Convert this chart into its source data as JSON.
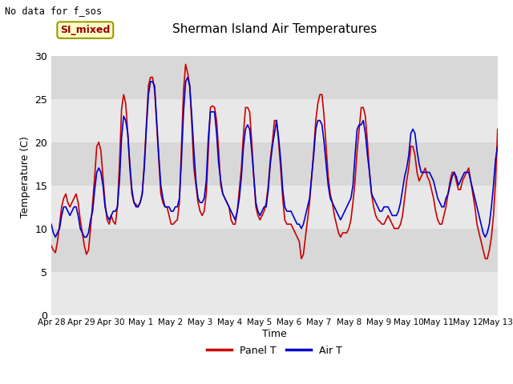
{
  "title": "Sherman Island Air Temperatures",
  "xlabel": "Time",
  "ylabel": "Temperature (C)",
  "no_data_text": "No data for f_sos",
  "legend_label_text": "SI_mixed",
  "ylim": [
    0,
    32
  ],
  "yticks": [
    0,
    5,
    10,
    15,
    20,
    25,
    30
  ],
  "xtick_labels": [
    "Apr 28",
    "Apr 29",
    "Apr 30",
    "May 1",
    "May 2",
    "May 3",
    "May 4",
    "May 5",
    "May 6",
    "May 7",
    "May 8",
    "May 9",
    "May 10",
    "May 11",
    "May 12",
    "May 13"
  ],
  "panel_color": "#cc0000",
  "air_color": "#0000cc",
  "plot_bg_light": "#ebebeb",
  "plot_bg_dark": "#d8d8d8",
  "legend_box_color": "#ffffcc",
  "legend_text_color": "#990000",
  "legend_box_edge": "#999900",
  "panel_T": [
    8.0,
    7.5,
    7.2,
    8.5,
    10.5,
    12.5,
    13.5,
    14.0,
    13.0,
    12.5,
    13.0,
    13.5,
    14.0,
    13.0,
    11.0,
    9.5,
    8.0,
    7.0,
    7.5,
    10.0,
    13.0,
    16.0,
    19.5,
    20.0,
    19.0,
    16.0,
    13.0,
    11.0,
    10.5,
    11.5,
    10.8,
    10.5,
    12.5,
    17.5,
    23.8,
    25.5,
    24.5,
    21.0,
    17.0,
    14.0,
    13.0,
    12.8,
    12.5,
    13.0,
    14.0,
    17.5,
    22.0,
    26.5,
    27.5,
    27.5,
    26.0,
    22.0,
    18.0,
    14.0,
    13.0,
    12.5,
    12.5,
    11.5,
    10.5,
    10.5,
    10.8,
    11.0,
    13.0,
    19.5,
    26.0,
    29.0,
    28.0,
    26.5,
    22.0,
    17.0,
    15.0,
    13.0,
    12.0,
    11.5,
    12.0,
    14.0,
    19.0,
    24.0,
    24.2,
    24.0,
    22.5,
    19.0,
    15.0,
    14.0,
    13.5,
    13.0,
    12.5,
    11.0,
    10.5,
    10.5,
    12.0,
    14.5,
    17.0,
    21.0,
    24.0,
    24.0,
    23.5,
    20.0,
    16.0,
    12.5,
    11.5,
    11.0,
    11.5,
    12.0,
    13.0,
    15.0,
    18.0,
    20.0,
    22.5,
    22.5,
    20.0,
    17.0,
    13.5,
    11.0,
    10.5,
    10.5,
    10.5,
    10.0,
    9.5,
    9.0,
    8.5,
    6.5,
    7.0,
    9.0,
    11.0,
    13.0,
    16.0,
    19.0,
    22.5,
    24.5,
    25.5,
    25.5,
    23.0,
    19.5,
    16.0,
    14.0,
    13.0,
    11.5,
    10.5,
    9.5,
    9.0,
    9.5,
    9.5,
    9.5,
    10.0,
    11.0,
    13.0,
    15.5,
    19.0,
    21.5,
    24.0,
    24.0,
    23.0,
    20.0,
    16.5,
    14.0,
    12.5,
    11.5,
    11.0,
    10.8,
    10.5,
    10.5,
    11.0,
    11.5,
    11.0,
    10.5,
    10.0,
    10.0,
    10.0,
    10.5,
    11.5,
    13.5,
    15.5,
    17.0,
    19.5,
    19.5,
    18.5,
    16.5,
    15.5,
    16.0,
    16.5,
    17.0,
    16.0,
    15.5,
    14.5,
    13.5,
    12.0,
    11.0,
    10.5,
    10.5,
    11.5,
    12.5,
    14.0,
    15.5,
    16.5,
    16.5,
    15.5,
    14.5,
    14.5,
    15.5,
    16.0,
    16.5,
    17.0,
    15.5,
    14.0,
    12.5,
    10.5,
    9.5,
    8.5,
    7.5,
    6.5,
    6.5,
    7.5,
    9.0,
    11.5,
    15.5,
    21.5
  ],
  "air_T": [
    10.5,
    9.5,
    9.0,
    9.5,
    10.0,
    11.5,
    12.5,
    12.5,
    12.0,
    11.5,
    12.0,
    12.5,
    12.5,
    11.5,
    10.0,
    9.5,
    9.0,
    9.0,
    9.5,
    11.0,
    12.0,
    14.5,
    16.5,
    17.0,
    16.5,
    15.0,
    12.5,
    11.5,
    11.0,
    11.5,
    12.0,
    12.0,
    12.5,
    15.5,
    20.5,
    23.0,
    22.5,
    21.0,
    17.5,
    14.5,
    13.0,
    12.5,
    12.5,
    13.0,
    14.0,
    17.0,
    21.5,
    25.5,
    27.0,
    27.0,
    26.5,
    22.5,
    18.5,
    15.0,
    13.5,
    12.5,
    12.5,
    12.5,
    12.0,
    12.0,
    12.5,
    12.5,
    13.5,
    18.0,
    23.5,
    27.0,
    27.5,
    26.5,
    23.0,
    19.0,
    15.5,
    13.5,
    13.0,
    13.0,
    13.5,
    15.5,
    20.5,
    23.5,
    23.5,
    23.5,
    21.0,
    17.5,
    15.5,
    14.0,
    13.5,
    13.0,
    12.5,
    12.0,
    11.5,
    11.0,
    12.0,
    13.5,
    16.0,
    19.5,
    21.5,
    22.0,
    21.5,
    19.0,
    16.0,
    13.0,
    12.0,
    11.5,
    12.0,
    12.5,
    12.5,
    14.5,
    17.5,
    19.5,
    21.0,
    22.5,
    20.5,
    18.0,
    14.5,
    12.5,
    12.0,
    12.0,
    12.0,
    11.5,
    11.0,
    10.5,
    10.5,
    10.0,
    10.5,
    11.5,
    12.5,
    13.5,
    16.0,
    18.5,
    21.5,
    22.5,
    22.5,
    22.0,
    20.0,
    17.5,
    15.0,
    13.5,
    13.0,
    12.5,
    12.0,
    11.5,
    11.0,
    11.5,
    12.0,
    12.5,
    13.0,
    13.5,
    15.0,
    18.5,
    21.5,
    22.0,
    22.0,
    22.5,
    21.0,
    18.5,
    16.5,
    14.0,
    13.5,
    13.0,
    12.5,
    12.0,
    12.0,
    12.5,
    12.5,
    12.5,
    12.0,
    11.5,
    11.5,
    11.5,
    12.0,
    13.0,
    14.5,
    16.0,
    17.0,
    18.5,
    21.0,
    21.5,
    21.0,
    19.0,
    17.5,
    16.5,
    16.5,
    16.5,
    16.5,
    16.5,
    16.0,
    15.5,
    14.5,
    13.5,
    13.0,
    12.5,
    12.5,
    13.5,
    14.0,
    15.0,
    16.0,
    16.5,
    16.0,
    15.0,
    15.5,
    16.0,
    16.5,
    16.5,
    16.5,
    15.5,
    14.5,
    13.5,
    12.5,
    11.5,
    10.5,
    9.5,
    9.0,
    9.5,
    10.5,
    12.5,
    15.0,
    18.0,
    19.5
  ]
}
